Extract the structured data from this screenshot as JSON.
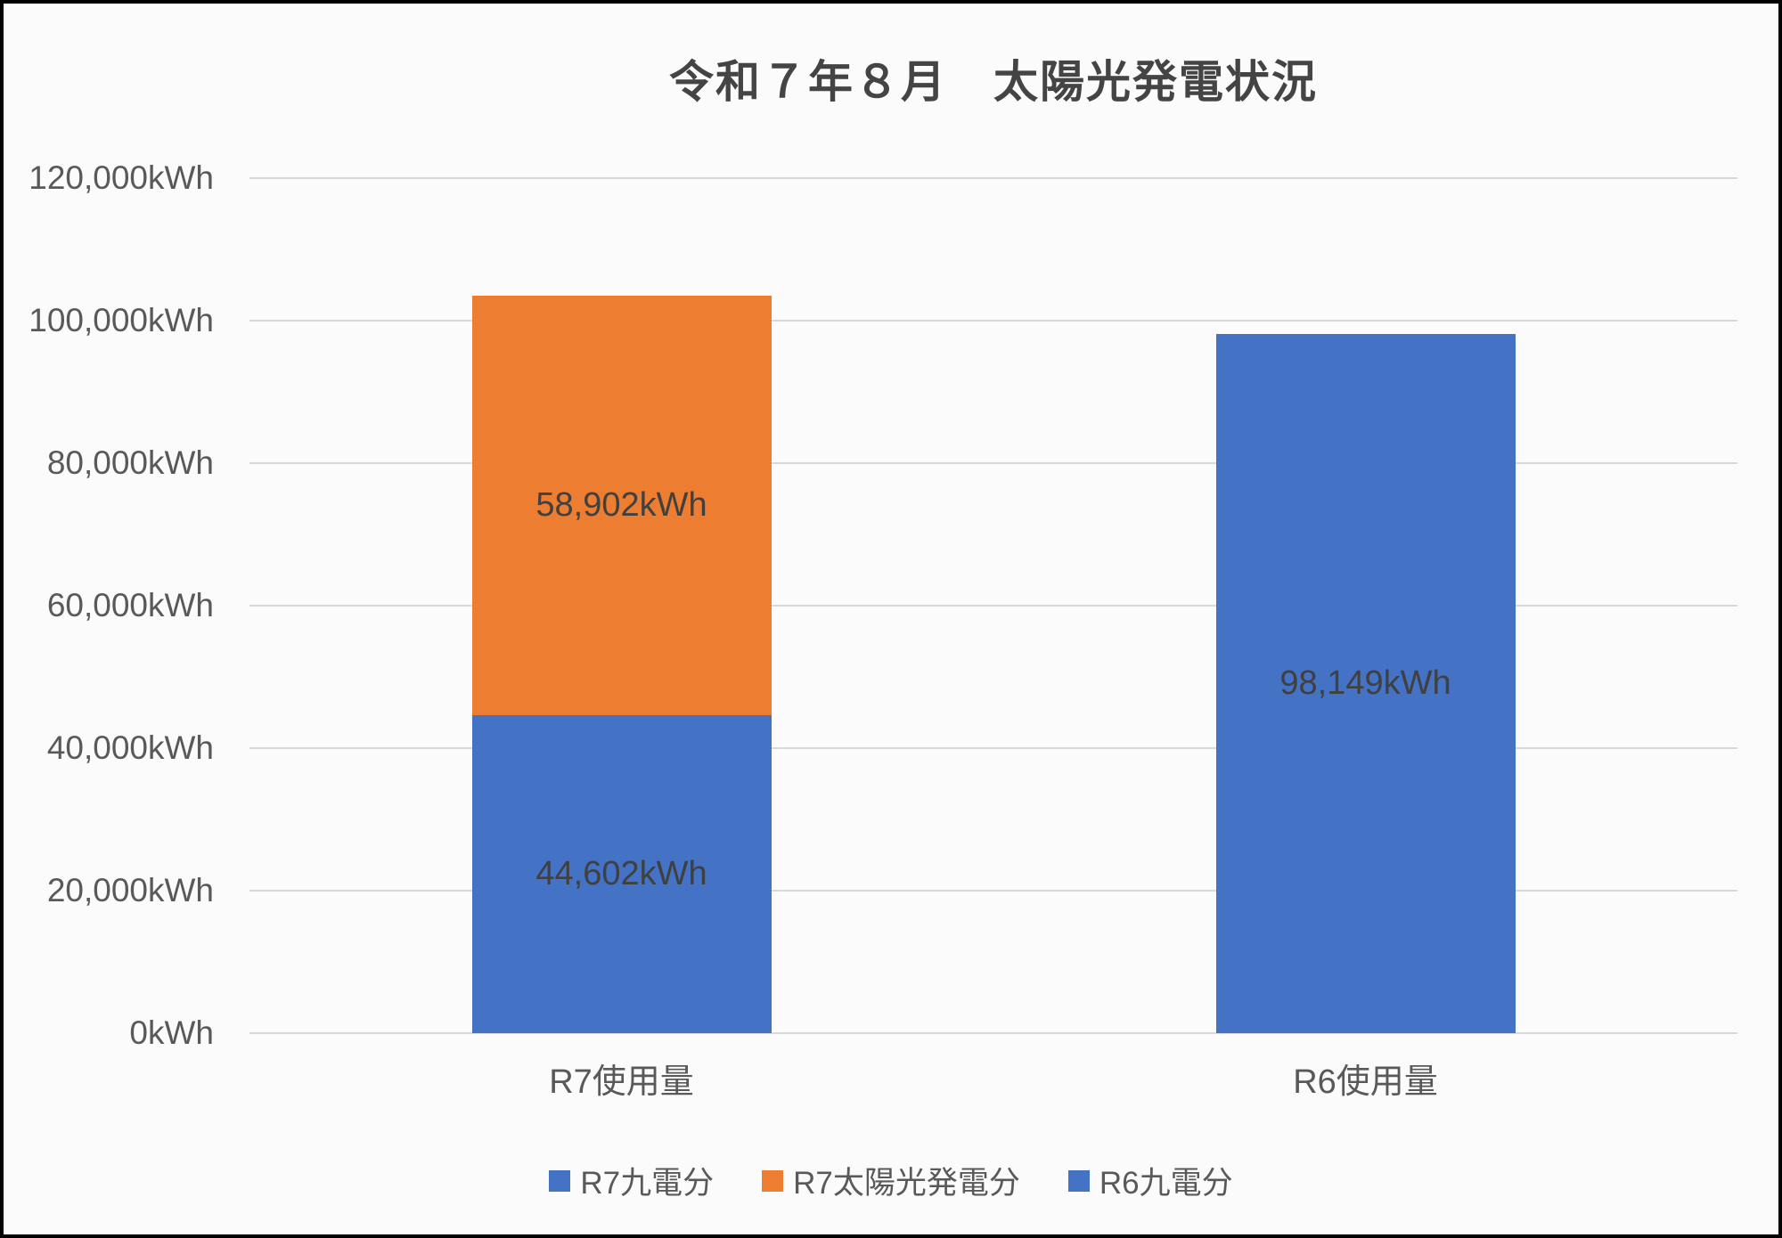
{
  "style": {
    "background": "#fbfbfb",
    "frame_border": "#000000",
    "grid_color": "#d9d9d9",
    "title_color": "#444444",
    "axis_text_color": "#595959",
    "data_label_color": "#404040",
    "accent_blue": "#4472C4",
    "accent_orange": "#ED7D31"
  },
  "chart_data": {
    "type": "bar",
    "stacked": true,
    "title": "令和７年８月　太陽光発電状況",
    "categories": [
      "R7使用量",
      "R6使用量"
    ],
    "series": [
      {
        "name": "R7九電分",
        "color": "#4472C4",
        "values": [
          44602,
          0
        ],
        "labels": [
          "44,602kWh",
          ""
        ]
      },
      {
        "name": "R7太陽光発電分",
        "color": "#ED7D31",
        "values": [
          58902,
          0
        ],
        "labels": [
          "58,902kWh",
          ""
        ]
      },
      {
        "name": "R6九電分",
        "color": "#4472C4",
        "values": [
          0,
          98149
        ],
        "labels": [
          "",
          "98,149kWh"
        ]
      }
    ],
    "totals": [
      103504,
      98149
    ],
    "unit": "kWh",
    "xlabel": "",
    "ylabel": "",
    "ylim": [
      0,
      120000
    ],
    "ytick_step": 20000,
    "yticks": [
      "0kWh",
      "20,000kWh",
      "40,000kWh",
      "60,000kWh",
      "80,000kWh",
      "100,000kWh",
      "120,000kWh"
    ],
    "grid": true,
    "legend_position": "bottom"
  }
}
